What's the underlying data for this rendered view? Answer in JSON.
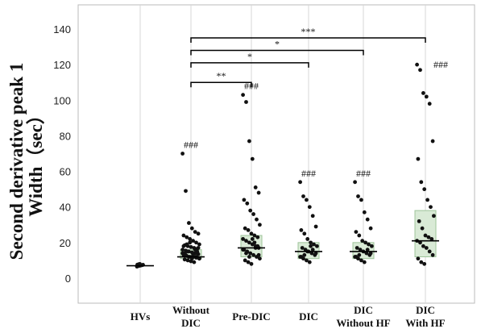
{
  "chart_data": {
    "type": "scatter",
    "ylabel_lines": [
      "Second derivative peak 1",
      "Width（sec）"
    ],
    "xlabel": "",
    "ylim": [
      0,
      140
    ],
    "yticks": [
      0,
      20,
      40,
      60,
      80,
      100,
      120,
      140
    ],
    "grid": "vertical-lines",
    "categories": [
      {
        "lines": [
          "HVs"
        ]
      },
      {
        "lines": [
          "Without",
          "DIC"
        ]
      },
      {
        "lines": [
          "Pre-DIC"
        ]
      },
      {
        "lines": [
          "DIC"
        ]
      },
      {
        "lines": [
          "DIC",
          "Without HF"
        ]
      },
      {
        "lines": [
          "DIC",
          "With HF"
        ]
      }
    ],
    "groups": [
      {
        "median": 7,
        "box": null,
        "marker": "",
        "points": [
          6.5,
          6.8,
          7,
          7.1,
          7.3,
          7.5,
          7.6,
          7.8,
          8
        ]
      },
      {
        "median": 12,
        "box": [
          11,
          16
        ],
        "marker": "###",
        "points": [
          70,
          49,
          31,
          28,
          26,
          25,
          24,
          23,
          22,
          21,
          20,
          19,
          18.5,
          18,
          17.5,
          17,
          16.5,
          16,
          15.5,
          15,
          14.5,
          14,
          13.5,
          13,
          12.5,
          12,
          12,
          11.5,
          11,
          10.5,
          10,
          9.5,
          9,
          15,
          14,
          13,
          12,
          11,
          16,
          17,
          18,
          19,
          20,
          13,
          12,
          11,
          14,
          15
        ]
      },
      {
        "median": 17,
        "box": [
          12,
          24
        ],
        "marker": "###",
        "points": [
          103,
          99,
          77,
          67,
          51,
          48,
          44,
          42,
          38,
          36,
          33,
          30,
          28,
          27,
          25,
          24,
          23,
          22,
          21,
          20,
          19,
          18,
          17,
          16,
          15,
          14,
          13,
          12,
          11,
          10,
          9,
          8,
          20,
          18,
          16,
          14,
          12,
          22,
          17,
          13
        ]
      },
      {
        "median": 15,
        "box": [
          11,
          20
        ],
        "marker": "###",
        "points": [
          54,
          46,
          44,
          40,
          35,
          29,
          27,
          25,
          22,
          20,
          19,
          18,
          17,
          16,
          15,
          14,
          13,
          12,
          11,
          10,
          9,
          16,
          14,
          12,
          13,
          15,
          18
        ]
      },
      {
        "median": 15,
        "box": [
          11,
          20
        ],
        "marker": "###",
        "points": [
          54,
          46,
          44,
          37,
          33,
          28,
          26,
          24,
          21,
          20,
          19,
          18,
          17,
          16,
          15,
          14,
          13,
          12,
          11,
          10,
          9,
          16,
          14,
          12,
          13
        ]
      },
      {
        "median": 21,
        "box": [
          12,
          38
        ],
        "marker": "###",
        "points": [
          120,
          117,
          104,
          102,
          98,
          77,
          67,
          54,
          50,
          44,
          40,
          35,
          32,
          28,
          24,
          23,
          22,
          21,
          20,
          18,
          17,
          15,
          13,
          11,
          9,
          8
        ]
      }
    ],
    "comparisons": [
      {
        "from": 1,
        "to": 2,
        "y": 110,
        "label": "**"
      },
      {
        "from": 1,
        "to": 3,
        "y": 121,
        "label": "*"
      },
      {
        "from": 1,
        "to": 4,
        "y": 128,
        "label": "*"
      },
      {
        "from": 1,
        "to": 5,
        "y": 135,
        "label": "***"
      }
    ],
    "colors": {
      "box_fill": "#d9ead6",
      "box_stroke": "#9ec49a",
      "dot": "#111111",
      "frame": "#bbbbbb",
      "gridline": "#d7d7d7"
    }
  }
}
